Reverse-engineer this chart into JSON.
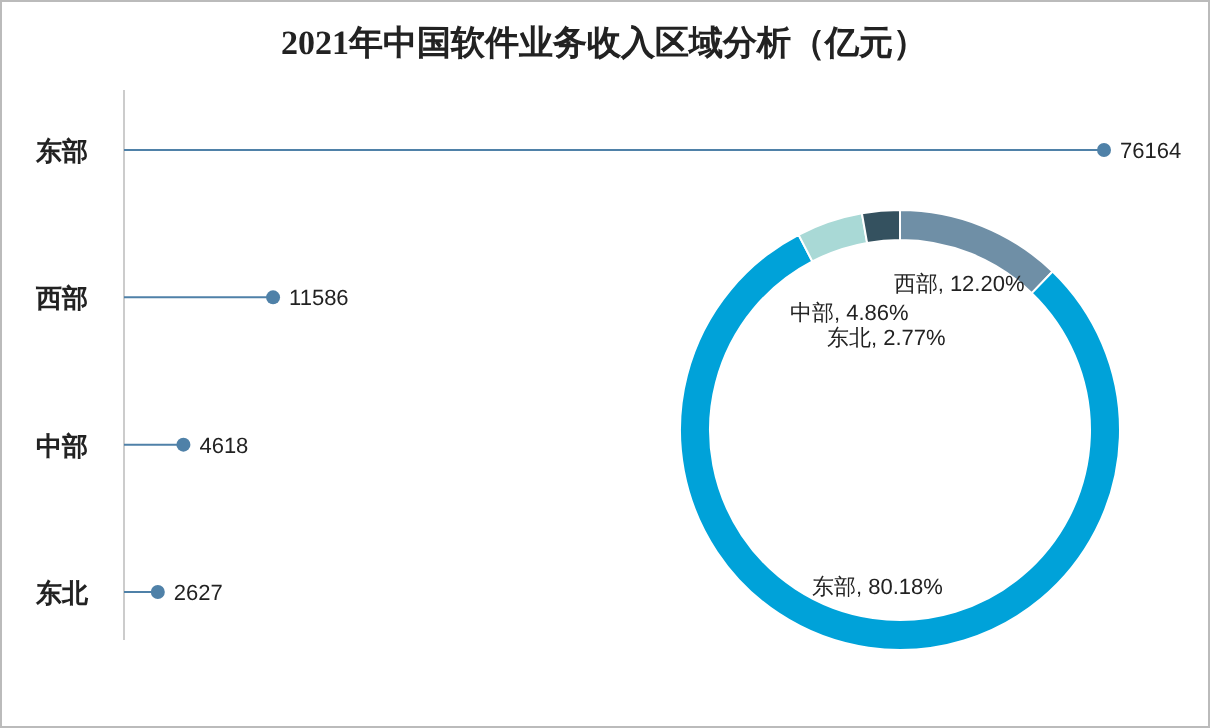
{
  "chart_data": [
    {
      "type": "lollipop",
      "title": "2021年中国软件业务收入区域分析（亿元）",
      "orientation": "horizontal",
      "categories": [
        "东部",
        "西部",
        "中部",
        "东北"
      ],
      "values": [
        76164,
        11586,
        4618,
        2627
      ],
      "color": "#4f81a8",
      "data_labels": true
    },
    {
      "type": "donut",
      "categories": [
        "西部",
        "东部",
        "中部",
        "东北"
      ],
      "values": [
        12.2,
        80.18,
        4.86,
        2.77
      ],
      "colors": [
        "#6f8fa6",
        "#00a2d9",
        "#a9d9d6",
        "#34515f"
      ],
      "value_labels": [
        "12.20%",
        "80.18%",
        "4.86%",
        "2.77%"
      ]
    }
  ]
}
